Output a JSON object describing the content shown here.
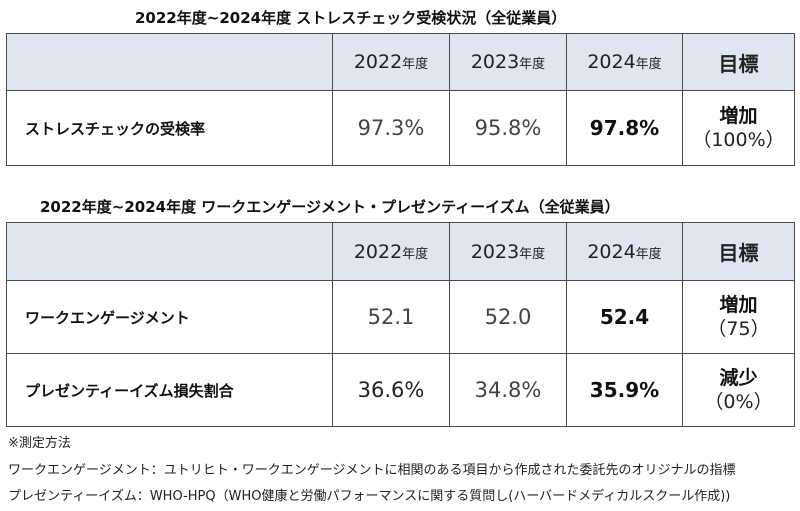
{
  "table1": {
    "caption": "2022年度~2024年度 ストレスチェック受検状況（全従業員）",
    "years": [
      {
        "num": "2022",
        "unit": "年度"
      },
      {
        "num": "2023",
        "unit": "年度"
      },
      {
        "num": "2024",
        "unit": "年度"
      }
    ],
    "goal_header": "目標",
    "rows": [
      {
        "label": "ストレスチェックの受検率",
        "v2022": "97.3%",
        "v2023": "95.8%",
        "v2024": "97.8%",
        "goal_top": "増加",
        "goal_bottom": "（100%）"
      }
    ]
  },
  "table2": {
    "caption": "2022年度~2024年度 ワークエンゲージメント・プレゼンティーイズム（全従業員）",
    "years": [
      {
        "num": "2022",
        "unit": "年度"
      },
      {
        "num": "2023",
        "unit": "年度"
      },
      {
        "num": "2024",
        "unit": "年度"
      }
    ],
    "goal_header": "目標",
    "rows": [
      {
        "label": "ワークエンゲージメント",
        "v2022": "52.1",
        "v2023": "52.0",
        "v2024": "52.4",
        "goal_top": "増加",
        "goal_bottom": "（75）"
      },
      {
        "label": "プレゼンティーイズム損失割合",
        "v2022": "36.6%",
        "v2023": "34.8%",
        "v2024": "35.9%",
        "goal_top": "減少",
        "goal_bottom": "（0%）"
      }
    ]
  },
  "notes": {
    "title": "※測定方法",
    "line1": "ワークエンゲージメント：ユトリヒト・ワークエンゲージメントに相関のある項目から作成された委託先のオリジナルの指標",
    "line2": "プレゼンティーイズム：WHO-HPQ（WHO健康と労働パフォーマンスに関する質問し(ハーバードメディカルスクール作成))"
  }
}
